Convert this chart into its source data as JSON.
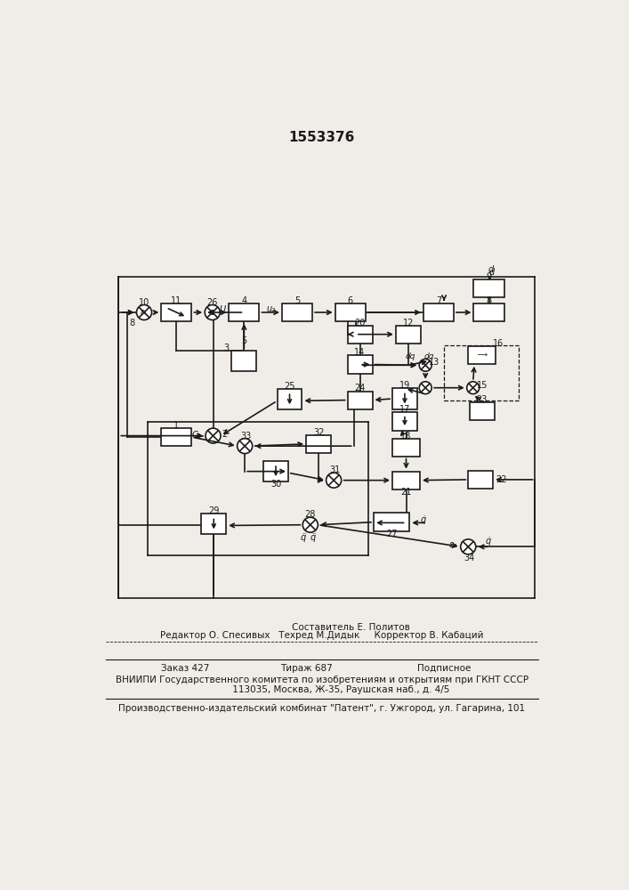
{
  "title": "1553376",
  "bg_color": "#f0ede8",
  "line_color": "#1a1a1a",
  "footer_line1": "                    Составитель Е. Политов",
  "footer_line2": "Редактор О. Спесивых   Техред М.Дидык     Корректор В. Кабаций",
  "footer_line3": "Заказ 427            Тираж 687           Подписное",
  "footer_line4": "ВНИИПИ Государственного комитета по изобретениям и открытиям при ГКНТ СССР",
  "footer_line5": "             113035, Москва, Ж-35, Раушская наб., д. 4/5",
  "footer_line6": "Производственно-издательский комбинат \"Патент\", г. Ужгород, ул. Гагарина, 101"
}
